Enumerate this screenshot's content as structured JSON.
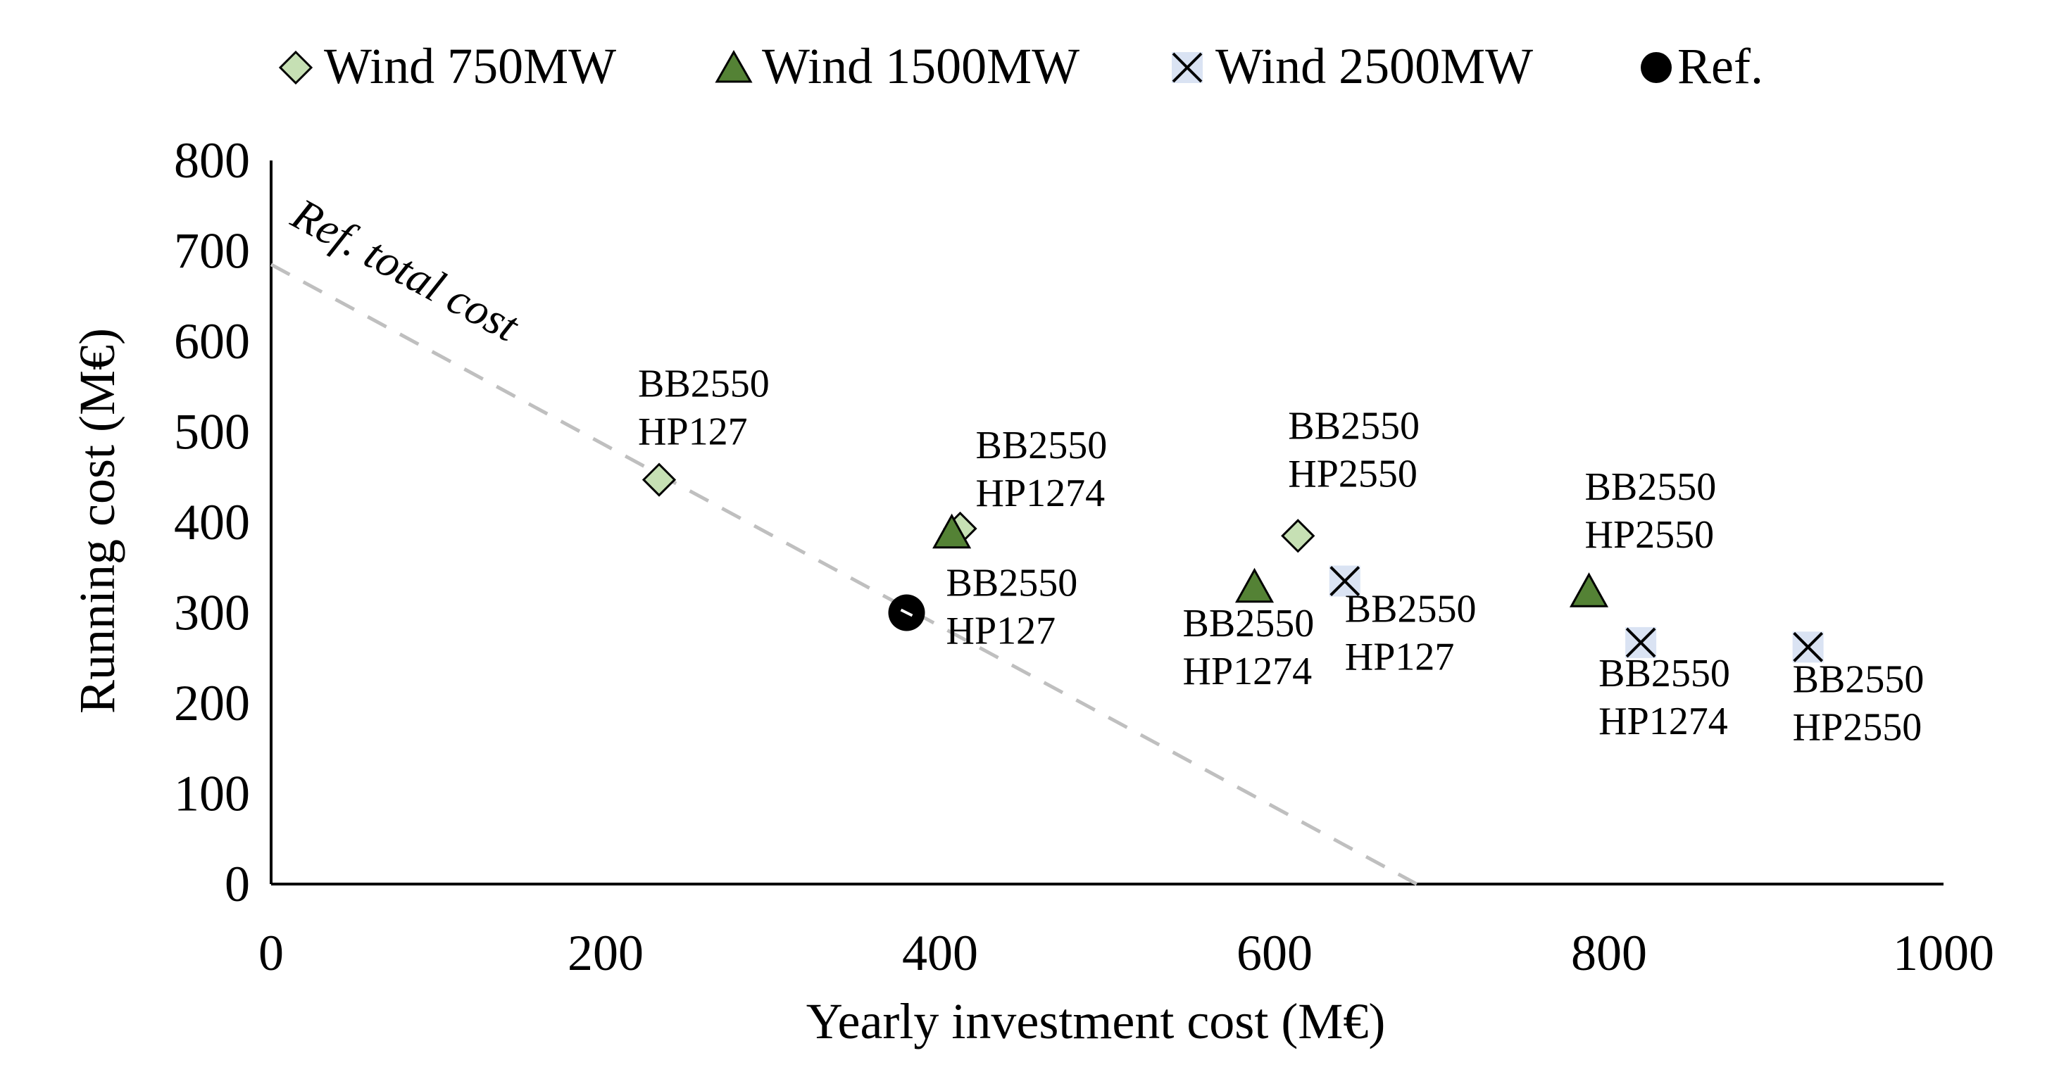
{
  "chart_data": {
    "type": "scatter",
    "title": "",
    "xlabel": "Yearly investment cost (M€)",
    "ylabel": "Running cost (M€)",
    "xlim": [
      0,
      1000
    ],
    "ylim": [
      0,
      800
    ],
    "xticks": [
      0,
      200,
      400,
      600,
      800,
      1000
    ],
    "yticks": [
      0,
      100,
      200,
      300,
      400,
      500,
      600,
      700,
      800
    ],
    "grid": false,
    "legend_position": "top",
    "colors": {
      "diamond_fill": "#c6e0b4",
      "triangle_fill": "#548235",
      "cross_bg": "#dae3f3",
      "ref_fill": "#000000",
      "dashed_line": "#bfbfbf",
      "axis": "#000000"
    },
    "series": [
      {
        "name": "Wind 750MW",
        "marker": "diamond",
        "points": [
          {
            "x": 232,
            "y": 447,
            "label": [
              "BB2550",
              "HP127"
            ]
          },
          {
            "x": 412,
            "y": 393,
            "label": [
              "BB2550",
              "HP1274"
            ]
          },
          {
            "x": 614,
            "y": 385,
            "label": [
              "BB2550",
              "HP2550"
            ]
          }
        ]
      },
      {
        "name": "Wind 1500MW",
        "marker": "triangle",
        "points": [
          {
            "x": 407,
            "y": 387,
            "label": []
          },
          {
            "x": 588,
            "y": 327,
            "label": [
              "BB2550",
              "HP1274"
            ]
          },
          {
            "x": 788,
            "y": 322,
            "label": [
              "BB2550",
              "HP2550"
            ]
          }
        ]
      },
      {
        "name": "Wind 2500MW",
        "marker": "cross",
        "points": [
          {
            "x": 642,
            "y": 335,
            "label": [
              "BB2550",
              "HP127"
            ]
          },
          {
            "x": 819,
            "y": 267,
            "label": [
              "BB2550",
              "HP1274"
            ]
          },
          {
            "x": 919,
            "y": 262,
            "label": [
              "BB2550",
              "HP2550"
            ]
          }
        ]
      },
      {
        "name": "Ref.",
        "marker": "circle",
        "points": [
          {
            "x": 380,
            "y": 300,
            "label": [
              "BB2550",
              "HP127"
            ]
          }
        ]
      }
    ],
    "reference_line": {
      "label": "Ref. total cost",
      "from": [
        0,
        685
      ],
      "to": [
        685,
        0
      ]
    }
  }
}
